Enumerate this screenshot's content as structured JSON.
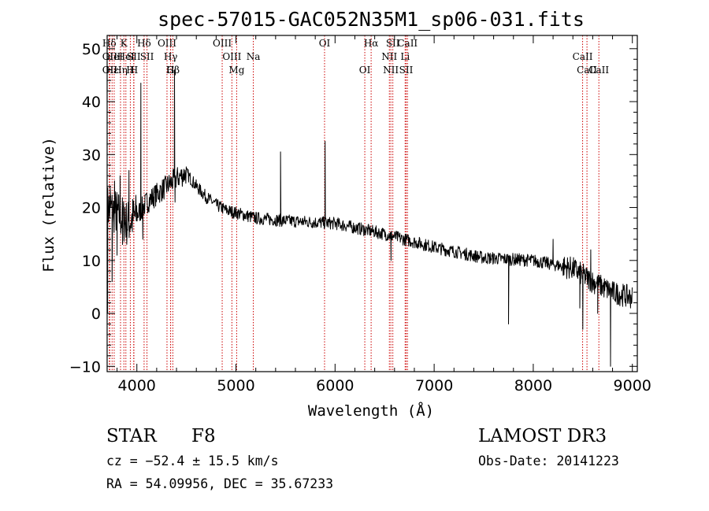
{
  "chart_data": {
    "type": "line",
    "title": "spec-57015-GAC052N35M1_sp06-031.fits",
    "xlabel": "Wavelength (Å)",
    "ylabel": "Flux (relative)",
    "xlim": [
      3700,
      9050
    ],
    "ylim": [
      -11,
      52.5
    ],
    "x_ticks": [
      4000,
      5000,
      6000,
      7000,
      8000,
      9000
    ],
    "y_ticks": [
      -10,
      0,
      10,
      20,
      30,
      40,
      50
    ],
    "grid": false,
    "legend": "none",
    "line_color": "#000000",
    "marker_color": "#cc0000",
    "continuum": [
      [
        3700,
        20
      ],
      [
        3800,
        19
      ],
      [
        3900,
        17
      ],
      [
        4000,
        18.5
      ],
      [
        4100,
        21
      ],
      [
        4200,
        22.5
      ],
      [
        4300,
        24
      ],
      [
        4400,
        25.5
      ],
      [
        4500,
        26.5
      ],
      [
        4600,
        24
      ],
      [
        4700,
        22
      ],
      [
        4800,
        20.5
      ],
      [
        4900,
        19.5
      ],
      [
        5000,
        19
      ],
      [
        5200,
        18
      ],
      [
        5500,
        17.5
      ],
      [
        6000,
        17
      ],
      [
        6500,
        15
      ],
      [
        7000,
        12.5
      ],
      [
        7500,
        10.5
      ],
      [
        8000,
        10
      ],
      [
        8400,
        8.5
      ],
      [
        8600,
        6
      ],
      [
        8800,
        4
      ],
      [
        9000,
        3
      ]
    ],
    "features": [
      {
        "x": 3705,
        "y": 0
      },
      {
        "x": 3730,
        "y": 24
      },
      {
        "x": 3750,
        "y": 6
      },
      {
        "x": 3775,
        "y": 25
      },
      {
        "x": 3800,
        "y": 11
      },
      {
        "x": 3830,
        "y": 26
      },
      {
        "x": 3855,
        "y": 13
      },
      {
        "x": 3880,
        "y": 20
      },
      {
        "x": 3920,
        "y": 27
      },
      {
        "x": 4040,
        "y": 43.5
      },
      {
        "x": 4060,
        "y": 14
      },
      {
        "x": 4380,
        "y": 46
      },
      {
        "x": 4385,
        "y": 21
      },
      {
        "x": 5450,
        "y": 30.5
      },
      {
        "x": 5900,
        "y": 32.5
      },
      {
        "x": 6565,
        "y": 10
      },
      {
        "x": 7750,
        "y": -2
      },
      {
        "x": 8200,
        "y": 14
      },
      {
        "x": 8470,
        "y": 1
      },
      {
        "x": 8500,
        "y": -3
      },
      {
        "x": 8580,
        "y": 12
      },
      {
        "x": 8650,
        "y": 0
      },
      {
        "x": 8780,
        "y": -10
      },
      {
        "x": 8800,
        "y": 4.5
      }
    ],
    "lines": [
      {
        "name": "Hδ",
        "wave": 3722,
        "row": 1
      },
      {
        "name": "OII",
        "wave": 3727,
        "row": 2
      },
      {
        "name": "OII",
        "wave": 3727,
        "row": 3
      },
      {
        "name": "Hε",
        "wave": 3750,
        "row": 3
      },
      {
        "name": "HeI",
        "wave": 3771,
        "row": 2
      },
      {
        "name": "Hη",
        "wave": 3835,
        "row": 3
      },
      {
        "name": "K",
        "wave": 3869,
        "row": 1
      },
      {
        "name": "HeI",
        "wave": 3889,
        "row": 2
      },
      {
        "name": "H",
        "wave": 3934,
        "row": 3
      },
      {
        "name": "SII",
        "wave": 3968,
        "row": 2
      },
      {
        "name": "H",
        "wave": 3970,
        "row": 3
      },
      {
        "name": "Hδ",
        "wave": 4073,
        "row": 1
      },
      {
        "name": "SII",
        "wave": 4102,
        "row": 2
      },
      {
        "name": "OIII",
        "wave": 4304,
        "row": 1
      },
      {
        "name": "Hγ",
        "wave": 4341,
        "row": 2
      },
      {
        "name": "G",
        "wave": 4340,
        "row": 3
      },
      {
        "name": "Hβ",
        "wave": 4363,
        "row": 3
      },
      {
        "name": "OIII",
        "wave": 4861,
        "row": 1
      },
      {
        "name": "OIII",
        "wave": 4959,
        "row": 2
      },
      {
        "name": "Mg",
        "wave": 5007,
        "row": 3
      },
      {
        "name": "Na",
        "wave": 5175,
        "row": 2
      },
      {
        "name": "OI",
        "wave": 5894,
        "row": 1
      },
      {
        "name": "OI",
        "wave": 6300,
        "row": 3
      },
      {
        "name": "Hα",
        "wave": 6364,
        "row": 1
      },
      {
        "name": "NII",
        "wave": 6548,
        "row": 2
      },
      {
        "name": "NII",
        "wave": 6563,
        "row": 3
      },
      {
        "name": "SII",
        "wave": 6583,
        "row": 1
      },
      {
        "name": "Li",
        "wave": 6707,
        "row": 2
      },
      {
        "name": "SII",
        "wave": 6717,
        "row": 3
      },
      {
        "name": "CaII",
        "wave": 6731,
        "row": 1
      },
      {
        "name": "CaII",
        "wave": 8498,
        "row": 2
      },
      {
        "name": "CaII",
        "wave": 8542,
        "row": 3
      },
      {
        "name": "CaII",
        "wave": 8662,
        "row": 0
      }
    ]
  },
  "info": {
    "class_label": "STAR",
    "subclass": "F8",
    "survey": "LAMOST DR3",
    "cz": "cz = −52.4 ± 15.5 km/s",
    "obs_date": "Obs-Date: 20141223",
    "coords": "RA =  54.09956, DEC =  35.67233"
  }
}
